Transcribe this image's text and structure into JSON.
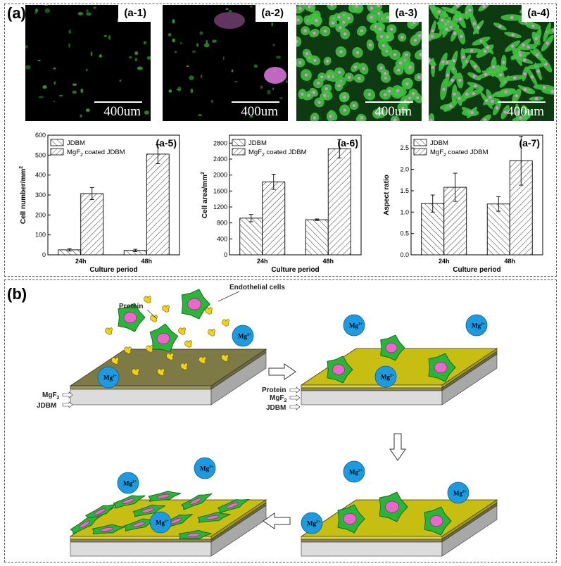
{
  "panel_a": {
    "label": "(a)",
    "micrographs": [
      {
        "tag": "(a-1)",
        "scale": "400um",
        "density": "sparse"
      },
      {
        "tag": "(a-2)",
        "scale": "400um",
        "density": "sparse-debris"
      },
      {
        "tag": "(a-3)",
        "scale": "400um",
        "density": "dense"
      },
      {
        "tag": "(a-4)",
        "scale": "400um",
        "density": "dense-elongated"
      }
    ]
  },
  "chart_data": [
    {
      "tag": "(a-5)",
      "type": "bar",
      "categories": [
        "24h",
        "48h"
      ],
      "series": [
        {
          "name": "JDBM",
          "values": [
            25,
            22
          ],
          "errors": [
            6,
            6
          ]
        },
        {
          "name": "MgF2 coated JDBM",
          "values": [
            307,
            505
          ],
          "errors": [
            30,
            48
          ]
        }
      ],
      "xlabel": "Culture period",
      "ylabel": "Cell number/mm2",
      "ylim": [
        0,
        600
      ],
      "yticks": [
        0,
        100,
        200,
        300,
        400,
        500,
        600
      ],
      "legend": "top-left"
    },
    {
      "tag": "(a-6)",
      "type": "bar",
      "categories": [
        "24h",
        "48h"
      ],
      "series": [
        {
          "name": "JDBM",
          "values": [
            920,
            880
          ],
          "errors": [
            90,
            20
          ]
        },
        {
          "name": "MgF2 coated JDBM",
          "values": [
            1830,
            2660
          ],
          "errors": [
            190,
            230
          ]
        }
      ],
      "xlabel": "Culture period",
      "ylabel": "Cell area/mm2",
      "ylim": [
        0,
        3000
      ],
      "yticks": [
        0,
        400,
        800,
        1200,
        1600,
        2000,
        2400,
        2800
      ],
      "legend": "top-left"
    },
    {
      "tag": "(a-7)",
      "type": "bar",
      "categories": [
        "24h",
        "48h"
      ],
      "series": [
        {
          "name": "JDBM",
          "values": [
            1.2,
            1.19
          ],
          "errors": [
            0.2,
            0.17
          ]
        },
        {
          "name": "MgF2 coated JDBM",
          "values": [
            1.58,
            2.2
          ],
          "errors": [
            0.33,
            0.57
          ]
        }
      ],
      "xlabel": "Culture period",
      "ylabel": "Aspect ratio",
      "ylim": [
        0,
        2.8
      ],
      "yticks": [
        0.0,
        0.5,
        1.0,
        1.5,
        2.0,
        2.5
      ],
      "legend": "top-left"
    }
  ],
  "panel_b": {
    "label": "(b)",
    "labels": {
      "protein_top": "Protein",
      "endothelial": "Endothelial cells",
      "mgf2": "MgF",
      "mgf2_sub": "2",
      "jdbm": "JDBM",
      "protein_layer": "Protein",
      "ion": "Mg",
      "ion_sup": "2+"
    }
  },
  "colors": {
    "cell_green": "#2bb43a",
    "nucleus_pink": "#ee66cc",
    "ion_blue": "#1e9be0",
    "protein_yellow": "#f2d21a",
    "slab_olive": "#7d7a45",
    "slab_gold": "#c8be12",
    "slab_gray": "#c8c8c8"
  }
}
